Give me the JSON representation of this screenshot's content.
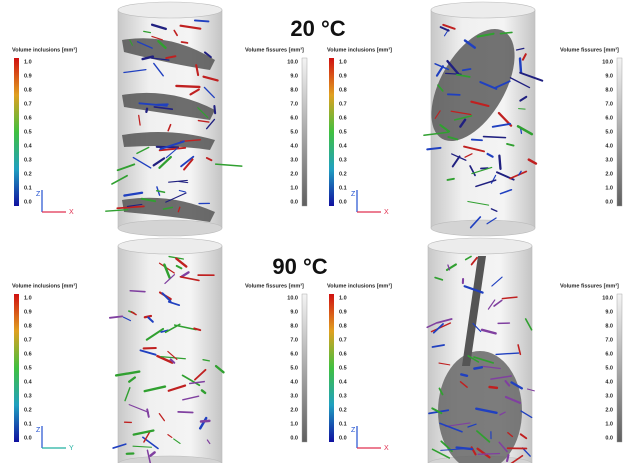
{
  "titles": [
    "20 °C",
    "90 °C"
  ],
  "panels": [
    {
      "inclusions": {
        "label": "Volume inclusions [mm³]",
        "ticks": [
          "1.0",
          "0.9",
          "0.8",
          "0.7",
          "0.6",
          "0.5",
          "0.4",
          "0.3",
          "0.2",
          "0.1",
          "0.0"
        ]
      },
      "fissures": {
        "label": "Volume fissures [mm³]",
        "ticks": [
          "10.0",
          "9.0",
          "8.0",
          "7.0",
          "6.0",
          "5.0",
          "4.0",
          "3.0",
          "2.0",
          "1.0",
          "0.0"
        ]
      },
      "axes": [
        "Z",
        "X"
      ]
    },
    {
      "inclusions": {
        "label": "Volume inclusions [mm³]",
        "ticks": [
          "1.0",
          "0.9",
          "0.8",
          "0.7",
          "0.6",
          "0.5",
          "0.4",
          "0.3",
          "0.2",
          "0.1",
          "0.0"
        ]
      },
      "fissures": {
        "label": "Volume fissures [mm³]",
        "ticks": [
          "10.0",
          "9.0",
          "8.0",
          "7.0",
          "6.0",
          "5.0",
          "4.0",
          "3.0",
          "2.0",
          "1.0",
          "0.0"
        ]
      },
      "axes": [
        "Z",
        "X"
      ]
    },
    {
      "inclusions": {
        "label": "Volume inclusions [mm³]",
        "ticks": [
          "1.0",
          "0.9",
          "0.8",
          "0.7",
          "0.6",
          "0.5",
          "0.4",
          "0.3",
          "0.2",
          "0.1",
          "0.0"
        ]
      },
      "fissures": {
        "label": "Volume fissures [mm³]",
        "ticks": [
          "10.0",
          "9.0",
          "8.0",
          "7.0",
          "6.0",
          "5.0",
          "4.0",
          "3.0",
          "2.0",
          "1.0",
          "0.0"
        ]
      },
      "axes": [
        "Z",
        "Y"
      ]
    },
    {
      "inclusions": {
        "label": "Volume inclusions [mm³]",
        "ticks": [
          "1.0",
          "0.9",
          "0.8",
          "0.7",
          "0.6",
          "0.5",
          "0.4",
          "0.3",
          "0.2",
          "0.1",
          "0.0"
        ]
      },
      "fissures": {
        "label": "Volume fissures [mm³]",
        "ticks": [
          "10.0",
          "9.0",
          "8.0",
          "7.0",
          "6.0",
          "5.0",
          "4.0",
          "3.0",
          "2.0",
          "1.0",
          "0.0"
        ]
      },
      "axes": [
        "Z",
        "X"
      ]
    }
  ]
}
